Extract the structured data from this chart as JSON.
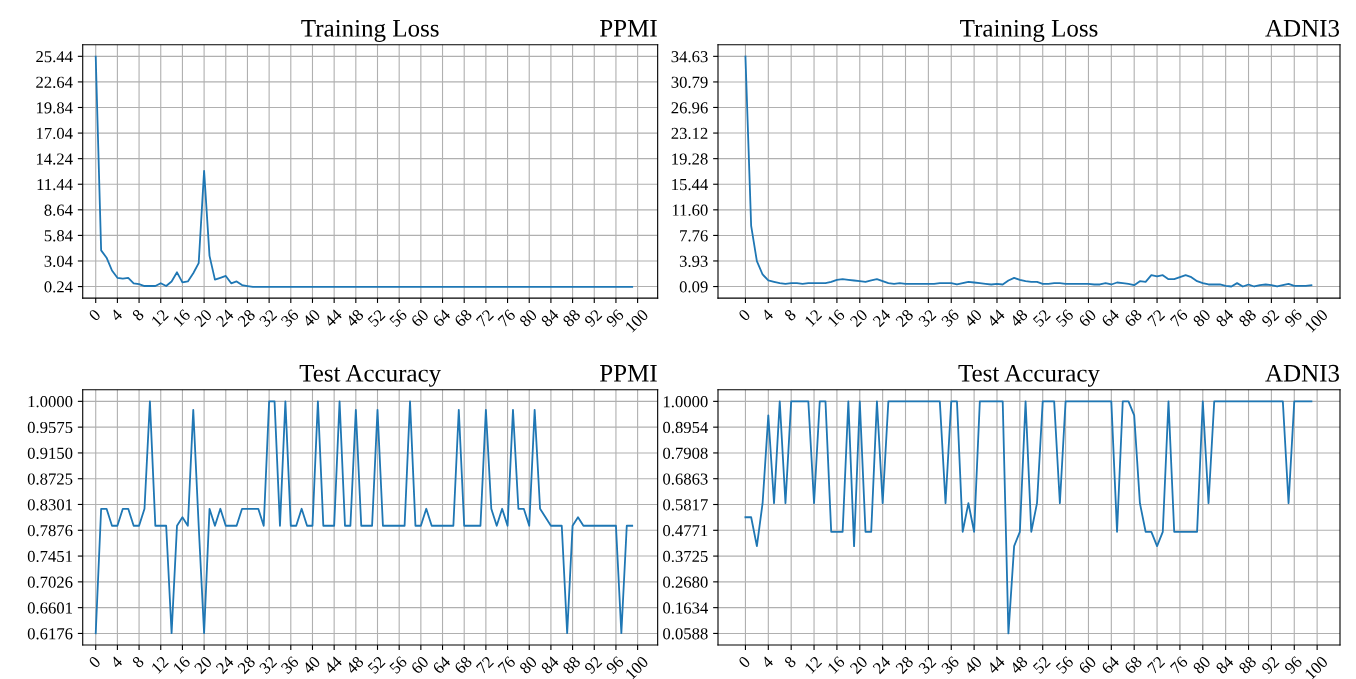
{
  "chart_data": [
    {
      "type": "line",
      "title": "Training Loss",
      "subtitle": "PPMI",
      "grid": true,
      "color": "#1f77b4",
      "x": [
        0,
        1,
        2,
        3,
        4,
        5,
        6,
        7,
        8,
        9,
        10,
        11,
        12,
        13,
        14,
        15,
        16,
        17,
        18,
        19,
        20,
        21,
        22,
        23,
        24,
        25,
        26,
        27,
        28,
        29,
        30,
        31,
        32,
        33,
        34,
        35,
        36,
        37,
        38,
        39,
        40,
        41,
        42,
        43,
        44,
        45,
        46,
        47,
        48,
        49,
        50,
        51,
        52,
        53,
        54,
        55,
        56,
        57,
        58,
        59,
        60,
        61,
        62,
        63,
        64,
        65,
        66,
        67,
        68,
        69,
        70,
        71,
        72,
        73,
        74,
        75,
        76,
        77,
        78,
        79,
        80,
        81,
        82,
        83,
        84,
        85,
        86,
        87,
        88,
        89,
        90,
        91,
        92,
        93,
        94,
        95,
        96,
        97,
        98,
        99
      ],
      "values": [
        25.4,
        4.2,
        3.4,
        2.0,
        1.2,
        1.1,
        1.2,
        0.6,
        0.5,
        0.3,
        0.3,
        0.3,
        0.6,
        0.3,
        0.8,
        1.8,
        0.7,
        0.8,
        1.7,
        2.8,
        12.9,
        3.6,
        1.0,
        1.2,
        1.4,
        0.6,
        0.8,
        0.4,
        0.3,
        0.2,
        0.2,
        0.2,
        0.2,
        0.2,
        0.2,
        0.2,
        0.2,
        0.2,
        0.2,
        0.2,
        0.2,
        0.2,
        0.2,
        0.2,
        0.2,
        0.2,
        0.2,
        0.2,
        0.2,
        0.2,
        0.2,
        0.2,
        0.2,
        0.2,
        0.2,
        0.2,
        0.2,
        0.2,
        0.2,
        0.2,
        0.2,
        0.2,
        0.2,
        0.2,
        0.2,
        0.2,
        0.2,
        0.2,
        0.2,
        0.2,
        0.2,
        0.2,
        0.2,
        0.2,
        0.2,
        0.2,
        0.2,
        0.2,
        0.2,
        0.2,
        0.2,
        0.2,
        0.2,
        0.2,
        0.2,
        0.2,
        0.2,
        0.2,
        0.2,
        0.2,
        0.2,
        0.2,
        0.2,
        0.2,
        0.2,
        0.2,
        0.2,
        0.2,
        0.2,
        0.2
      ],
      "xlim": [
        -2.4,
        103.7
      ],
      "xticks": [
        0,
        4,
        8,
        12,
        16,
        20,
        24,
        28,
        32,
        36,
        40,
        44,
        48,
        52,
        56,
        60,
        64,
        68,
        72,
        76,
        80,
        84,
        88,
        92,
        96,
        100
      ],
      "ylim": [
        -1.02,
        26.7
      ],
      "yticks": [
        0.24,
        3.04,
        5.84,
        8.64,
        11.44,
        14.24,
        17.04,
        19.84,
        22.64,
        25.44
      ]
    },
    {
      "type": "line",
      "title": "Training Loss",
      "subtitle": "ADNI3",
      "grid": true,
      "color": "#1f77b4",
      "x": [
        0,
        1,
        2,
        3,
        4,
        5,
        6,
        7,
        8,
        9,
        10,
        11,
        12,
        13,
        14,
        15,
        16,
        17,
        18,
        19,
        20,
        21,
        22,
        23,
        24,
        25,
        26,
        27,
        28,
        29,
        30,
        31,
        32,
        33,
        34,
        35,
        36,
        37,
        38,
        39,
        40,
        41,
        42,
        43,
        44,
        45,
        46,
        47,
        48,
        49,
        50,
        51,
        52,
        53,
        54,
        55,
        56,
        57,
        58,
        59,
        60,
        61,
        62,
        63,
        64,
        65,
        66,
        67,
        68,
        69,
        70,
        71,
        72,
        73,
        74,
        75,
        76,
        77,
        78,
        79,
        80,
        81,
        82,
        83,
        84,
        85,
        86,
        87,
        88,
        89,
        90,
        91,
        92,
        93,
        94,
        95,
        96,
        97,
        98,
        99
      ],
      "values": [
        34.6,
        9.2,
        3.9,
        1.9,
        1.0,
        0.8,
        0.6,
        0.5,
        0.6,
        0.6,
        0.5,
        0.6,
        0.6,
        0.6,
        0.6,
        0.8,
        1.1,
        1.2,
        1.1,
        1.0,
        0.9,
        0.8,
        1.0,
        1.2,
        0.9,
        0.6,
        0.5,
        0.6,
        0.5,
        0.5,
        0.5,
        0.5,
        0.5,
        0.5,
        0.6,
        0.6,
        0.6,
        0.4,
        0.6,
        0.8,
        0.7,
        0.6,
        0.5,
        0.4,
        0.5,
        0.4,
        1.0,
        1.4,
        1.1,
        0.9,
        0.8,
        0.8,
        0.5,
        0.5,
        0.6,
        0.6,
        0.5,
        0.5,
        0.5,
        0.5,
        0.5,
        0.4,
        0.4,
        0.6,
        0.4,
        0.7,
        0.6,
        0.5,
        0.3,
        0.9,
        0.8,
        1.8,
        1.6,
        1.8,
        1.2,
        1.2,
        1.5,
        1.8,
        1.5,
        0.9,
        0.6,
        0.4,
        0.4,
        0.4,
        0.2,
        0.1,
        0.6,
        0.1,
        0.4,
        0.1,
        0.3,
        0.4,
        0.3,
        0.1,
        0.3,
        0.5,
        0.2,
        0.2,
        0.2,
        0.3
      ],
      "xlim": [
        -4.8,
        104
      ],
      "xticks": [
        0,
        4,
        8,
        12,
        16,
        20,
        24,
        28,
        32,
        36,
        40,
        44,
        48,
        52,
        56,
        60,
        64,
        68,
        72,
        76,
        80,
        84,
        88,
        92,
        96,
        100
      ],
      "ylim": [
        -1.64,
        36.36
      ],
      "yticks": [
        0.09,
        3.93,
        7.76,
        {
          "value": 11.6,
          "label": "11.60"
        },
        15.44,
        19.28,
        23.12,
        26.96,
        30.79,
        34.63
      ]
    },
    {
      "type": "line",
      "title": "Test Accuracy",
      "subtitle": "PPMI",
      "grid": true,
      "color": "#1f77b4",
      "x": [
        0,
        1,
        2,
        3,
        4,
        5,
        6,
        7,
        8,
        9,
        10,
        11,
        12,
        13,
        14,
        15,
        16,
        17,
        18,
        19,
        20,
        21,
        22,
        23,
        24,
        25,
        26,
        27,
        28,
        29,
        30,
        31,
        32,
        33,
        34,
        35,
        36,
        37,
        38,
        39,
        40,
        41,
        42,
        43,
        44,
        45,
        46,
        47,
        48,
        49,
        50,
        51,
        52,
        53,
        54,
        55,
        56,
        57,
        58,
        59,
        60,
        61,
        62,
        63,
        64,
        65,
        66,
        67,
        68,
        69,
        70,
        71,
        72,
        73,
        74,
        75,
        76,
        77,
        78,
        79,
        80,
        81,
        82,
        83,
        84,
        85,
        86,
        87,
        88,
        89,
        90,
        91,
        92,
        93,
        94,
        95,
        96,
        97,
        98,
        99
      ],
      "values": [
        0.618,
        0.823,
        0.823,
        0.795,
        0.795,
        0.823,
        0.823,
        0.795,
        0.795,
        0.823,
        1.0,
        0.795,
        0.795,
        0.795,
        0.618,
        0.795,
        0.809,
        0.795,
        0.986,
        0.795,
        0.618,
        0.823,
        0.795,
        0.823,
        0.795,
        0.795,
        0.795,
        0.823,
        0.823,
        0.823,
        0.823,
        0.795,
        1.0,
        1.0,
        0.795,
        1.0,
        0.795,
        0.795,
        0.823,
        0.795,
        0.795,
        1.0,
        0.795,
        0.795,
        0.795,
        1.0,
        0.795,
        0.795,
        0.986,
        0.795,
        0.795,
        0.795,
        0.986,
        0.795,
        0.795,
        0.795,
        0.795,
        0.795,
        1.0,
        0.795,
        0.795,
        0.823,
        0.795,
        0.795,
        0.795,
        0.795,
        0.795,
        0.986,
        0.795,
        0.795,
        0.795,
        0.795,
        0.986,
        0.823,
        0.795,
        0.823,
        0.795,
        0.986,
        0.823,
        0.823,
        0.795,
        0.986,
        0.823,
        0.809,
        0.795,
        0.795,
        0.795,
        0.618,
        0.795,
        0.809,
        0.795,
        0.795,
        0.795,
        0.795,
        0.795,
        0.795,
        0.795,
        0.618,
        0.795,
        0.795
      ],
      "xlim": [
        -2.4,
        103.7
      ],
      "xticks": [
        0,
        4,
        8,
        12,
        16,
        20,
        24,
        28,
        32,
        36,
        40,
        44,
        48,
        52,
        56,
        60,
        64,
        68,
        72,
        76,
        80,
        84,
        88,
        92,
        96,
        100
      ],
      "ylim": [
        0.5985,
        1.0191
      ],
      "yticks": [
        0.6176,
        0.6601,
        0.7026,
        0.7451,
        0.7876,
        0.8301,
        {
          "value": 0.8725,
          "label": "0.8725"
        },
        {
          "value": 0.915,
          "label": "0.9150"
        },
        0.9575,
        {
          "value": 1.0,
          "label": "1.0000"
        }
      ]
    },
    {
      "type": "line",
      "title": "Test Accuracy",
      "subtitle": "ADNI3",
      "grid": true,
      "color": "#1f77b4",
      "x": [
        0,
        1,
        2,
        3,
        4,
        5,
        6,
        7,
        8,
        9,
        10,
        11,
        12,
        13,
        14,
        15,
        16,
        17,
        18,
        19,
        20,
        21,
        22,
        23,
        24,
        25,
        26,
        27,
        28,
        29,
        30,
        31,
        32,
        33,
        34,
        35,
        36,
        37,
        38,
        39,
        40,
        41,
        42,
        43,
        44,
        45,
        46,
        47,
        48,
        49,
        50,
        51,
        52,
        53,
        54,
        55,
        56,
        57,
        58,
        59,
        60,
        61,
        62,
        63,
        64,
        65,
        66,
        67,
        68,
        69,
        70,
        71,
        72,
        73,
        74,
        75,
        76,
        77,
        78,
        79,
        80,
        81,
        82,
        83,
        84,
        85,
        86,
        87,
        88,
        89,
        90,
        91,
        92,
        93,
        94,
        95,
        96,
        97,
        98,
        99
      ],
      "values": [
        0.53,
        0.53,
        0.413,
        0.587,
        0.943,
        0.587,
        1.0,
        0.587,
        1.0,
        1.0,
        1.0,
        1.0,
        0.587,
        1.0,
        1.0,
        0.471,
        0.471,
        0.471,
        1.0,
        0.413,
        1.0,
        0.471,
        0.471,
        1.0,
        0.587,
        1.0,
        1.0,
        1.0,
        1.0,
        1.0,
        1.0,
        1.0,
        1.0,
        1.0,
        1.0,
        0.587,
        1.0,
        1.0,
        0.471,
        0.587,
        0.471,
        1.0,
        1.0,
        1.0,
        1.0,
        1.0,
        0.059,
        0.413,
        0.471,
        1.0,
        0.471,
        0.587,
        1.0,
        1.0,
        1.0,
        0.587,
        1.0,
        1.0,
        1.0,
        1.0,
        1.0,
        1.0,
        1.0,
        1.0,
        1.0,
        0.471,
        1.0,
        1.0,
        0.943,
        0.587,
        0.471,
        0.471,
        0.413,
        0.471,
        1.0,
        0.471,
        0.471,
        0.471,
        0.471,
        0.471,
        1.0,
        0.587,
        1.0,
        1.0,
        1.0,
        1.0,
        1.0,
        1.0,
        1.0,
        1.0,
        1.0,
        1.0,
        1.0,
        1.0,
        1.0,
        0.587,
        1.0,
        1.0,
        1.0,
        1.0
      ],
      "xlim": [
        -4.8,
        104
      ],
      "xticks": [
        0,
        4,
        8,
        12,
        16,
        20,
        24,
        28,
        32,
        36,
        40,
        44,
        48,
        52,
        56,
        60,
        64,
        68,
        72,
        76,
        80,
        84,
        88,
        92,
        96,
        100
      ],
      "ylim": [
        0.0117,
        1.0471
      ],
      "yticks": [
        0.0588,
        0.1634,
        {
          "value": 0.268,
          "label": "0.2680"
        },
        0.3725,
        0.4771,
        0.5817,
        0.6863,
        0.7908,
        0.8954,
        {
          "value": 1.0,
          "label": "1.0000"
        }
      ]
    }
  ]
}
